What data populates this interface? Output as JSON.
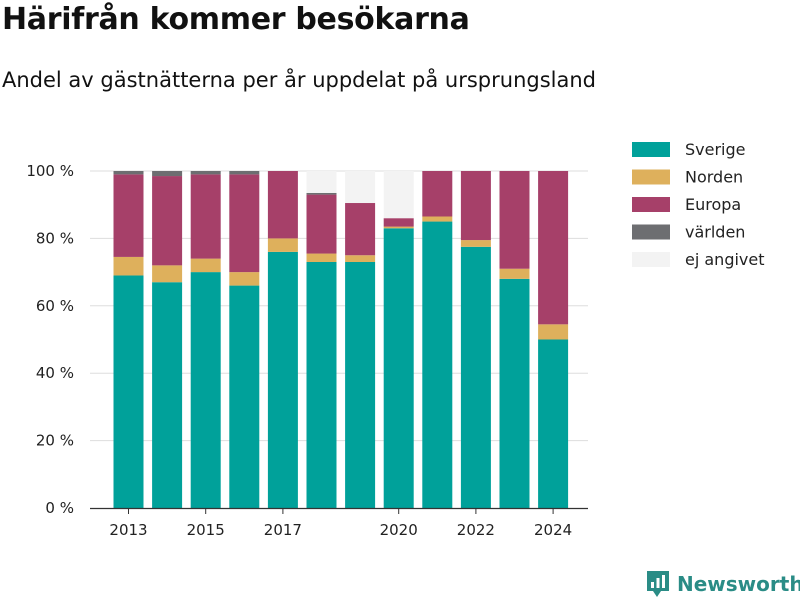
{
  "title": "Härifrån kommer besökarna",
  "subtitle": "Andel av gästnätterna per år uppdelat på ursprungsland",
  "brand": {
    "name": "Newsworthy"
  },
  "colors": {
    "Sverige": "#00a19a",
    "Norden": "#deb05c",
    "Europa": "#a64069",
    "världen": "#6d6e71",
    "ej angivet": "#f3f3f3",
    "grid": "#dddddd",
    "axis": "#333333",
    "brand": "#2a8c86"
  },
  "chart_data": {
    "type": "bar",
    "stacked": true,
    "categories": [
      2013,
      2014,
      2015,
      2016,
      2017,
      2018,
      2019,
      2020,
      2021,
      2022,
      2023,
      2024
    ],
    "x_tick_labels": [
      "2013",
      "2015",
      "2017",
      "2020",
      "2022",
      "2024"
    ],
    "y_ticks": [
      "0 %",
      "20 %",
      "40 %",
      "60 %",
      "80 %",
      "100 %"
    ],
    "ylim": [
      0,
      100
    ],
    "grid": true,
    "legend_position": "right",
    "series": [
      {
        "name": "Sverige",
        "values": [
          69,
          67,
          70,
          66,
          76,
          73,
          73,
          83,
          85,
          77.5,
          68,
          50
        ]
      },
      {
        "name": "Norden",
        "values": [
          5.5,
          5,
          4,
          4,
          4,
          2.5,
          2,
          0.5,
          1.5,
          2,
          3,
          4.5
        ]
      },
      {
        "name": "Europa",
        "values": [
          24.5,
          26.5,
          25,
          29,
          20,
          17.5,
          15.5,
          2.5,
          13.5,
          20.5,
          29,
          45.5
        ]
      },
      {
        "name": "världen",
        "values": [
          1,
          1.5,
          1,
          1,
          0,
          0.5,
          0,
          0,
          0,
          0,
          0,
          0
        ]
      },
      {
        "name": "ej angivet",
        "values": [
          0,
          0,
          0,
          0,
          0,
          6.5,
          9.5,
          14,
          0,
          0,
          0,
          0
        ]
      }
    ]
  }
}
